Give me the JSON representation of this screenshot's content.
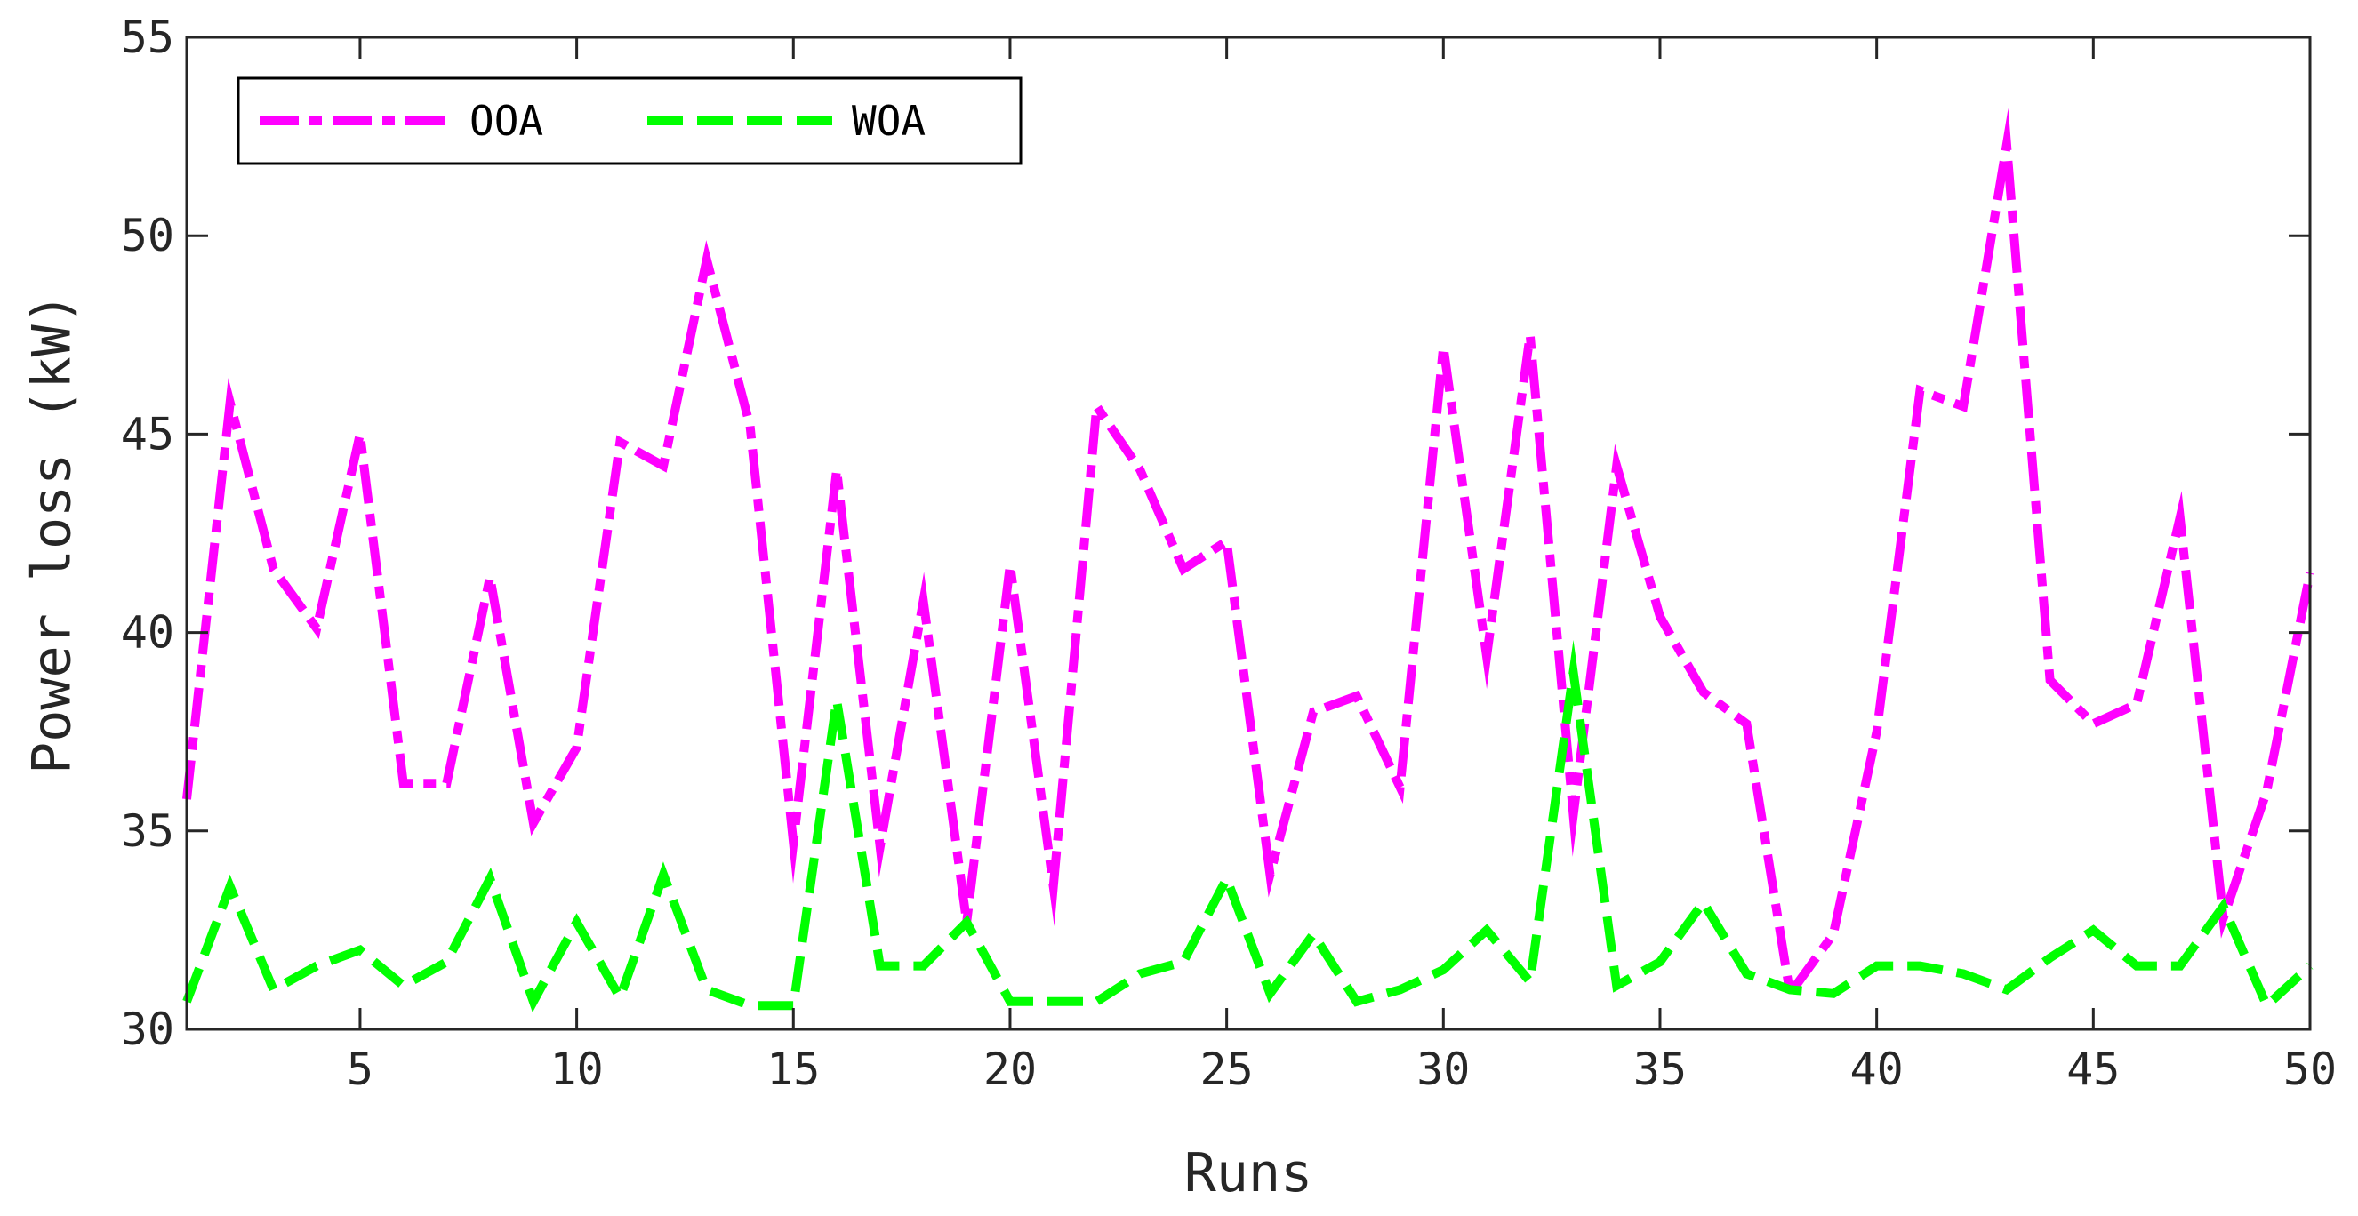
{
  "chart_data": {
    "type": "line",
    "title": "",
    "xlabel": "Runs",
    "ylabel": "Power loss (kW)",
    "xlim": [
      1,
      50
    ],
    "ylim": [
      30,
      55
    ],
    "xticks": [
      5,
      10,
      15,
      20,
      25,
      30,
      35,
      40,
      45,
      50
    ],
    "yticks": [
      30,
      35,
      40,
      45,
      50,
      55
    ],
    "grid": false,
    "legend_position": "top-left",
    "legend_orientation": "horizontal",
    "x": [
      1,
      2,
      3,
      4,
      5,
      6,
      7,
      8,
      9,
      10,
      11,
      12,
      13,
      14,
      15,
      16,
      17,
      18,
      19,
      20,
      21,
      22,
      23,
      24,
      25,
      26,
      27,
      28,
      29,
      30,
      31,
      32,
      33,
      34,
      35,
      36,
      37,
      38,
      39,
      40,
      41,
      42,
      43,
      44,
      45,
      46,
      47,
      48,
      49,
      50
    ],
    "series": [
      {
        "name": "OOA",
        "color": "#ff00ff",
        "line_style": "dash-dot",
        "values": [
          35.8,
          45.8,
          41.6,
          40.1,
          45.0,
          36.2,
          36.2,
          41.4,
          35.2,
          37.1,
          44.8,
          44.2,
          49.4,
          45.2,
          34.7,
          44.1,
          34.6,
          40.8,
          32.7,
          41.7,
          33.6,
          45.7,
          44.1,
          41.6,
          42.3,
          33.9,
          38.0,
          38.4,
          36.1,
          47.2,
          39.4,
          47.5,
          35.4,
          44.2,
          40.4,
          38.5,
          37.7,
          30.9,
          32.4,
          37.5,
          46.1,
          45.7,
          52.3,
          38.8,
          37.7,
          38.2,
          42.9,
          32.8,
          36.0,
          41.5
        ]
      },
      {
        "name": "WOA",
        "color": "#00ff00",
        "line_style": "dashed",
        "values": [
          30.7,
          33.6,
          31.0,
          31.6,
          32.0,
          31.1,
          31.7,
          33.8,
          30.7,
          32.7,
          30.8,
          33.9,
          31.0,
          30.6,
          30.6,
          38.3,
          31.6,
          31.6,
          32.7,
          30.7,
          30.7,
          30.7,
          31.4,
          31.7,
          33.8,
          30.9,
          32.4,
          30.7,
          31.0,
          31.5,
          32.5,
          31.2,
          39.0,
          31.1,
          31.7,
          33.2,
          31.4,
          31.0,
          30.9,
          31.6,
          31.6,
          31.4,
          31.0,
          31.8,
          32.5,
          31.6,
          31.6,
          33.1,
          30.6,
          31.6
        ]
      }
    ]
  }
}
